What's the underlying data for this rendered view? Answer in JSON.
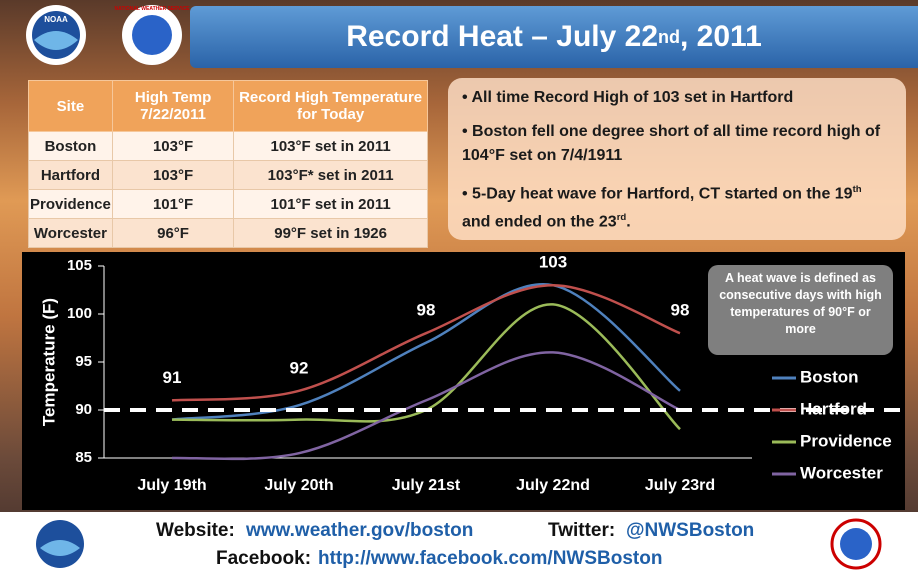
{
  "header": {
    "title": [
      "Record Heat – July 22",
      "nd",
      ", 2011"
    ],
    "logo_left": "NOAA",
    "logo_right": "NATIONAL WEATHER SERVICE"
  },
  "table": {
    "header": [
      "Site",
      "High Temp 7/22/2011",
      "Record High Temperature for Today"
    ],
    "rows": [
      [
        "Boston",
        "103°F",
        "103°F set in 2011"
      ],
      [
        "Hartford",
        "103°F",
        "103°F* set in 2011"
      ],
      [
        "Providence",
        "101°F",
        "101°F set in 2011"
      ],
      [
        "Worcester",
        "96°F",
        "99°F set in 1926"
      ]
    ]
  },
  "bullets": [
    [
      "All time Record High of 103 set in Hartford"
    ],
    [
      "Boston fell one degree short  of all time record high of 104°F set on 7/4/1911"
    ],
    [
      "5-Day heat wave for Hartford,  CT started on the 19",
      "th",
      " and ended on the 23",
      "rd",
      "."
    ]
  ],
  "chart_data": {
    "type": "line",
    "y_label": "Temperature (F)",
    "categories": [
      "July 19th",
      "July 20th",
      "July 21st",
      "July 22nd",
      "July 23rd"
    ],
    "series": [
      {
        "name": "Boston",
        "color": "#4f81bd",
        "values": [
          89,
          90.5,
          97,
          103,
          92
        ]
      },
      {
        "name": "Hartford",
        "color": "#c0504d",
        "values": [
          91,
          92,
          98,
          103,
          98
        ],
        "data_labels": true
      },
      {
        "name": "Providence",
        "color": "#9bbb59",
        "values": [
          89,
          89,
          90,
          101,
          88
        ]
      },
      {
        "name": "Worcester",
        "color": "#8064a2",
        "values": [
          85,
          85.5,
          91,
          96,
          90
        ]
      }
    ],
    "ylim": [
      85,
      105
    ],
    "yticks": [
      85,
      90,
      95,
      100,
      105
    ],
    "reference_line": 90,
    "legend": "right",
    "annotation": "A heat wave is defined as consecutive days with high temperatures of 90°F or more"
  },
  "footer": {
    "website_label": "Website:",
    "website": "www.weather.gov/boston",
    "twitter_label": "Twitter:",
    "twitter": "@NWSBoston",
    "facebook_label": "Facebook:",
    "facebook": "http://www.facebook.com/NWSBoston"
  }
}
